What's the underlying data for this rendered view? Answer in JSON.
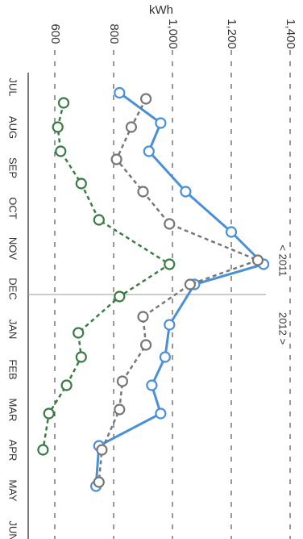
{
  "chart_data": {
    "type": "line",
    "ylabel": "kWh",
    "ylim": [
      540,
      1400
    ],
    "ytick_labels": [
      "600",
      "800",
      "1,000",
      "1,200",
      "1,400"
    ],
    "yticks": [
      600,
      800,
      1000,
      1200,
      1400
    ],
    "categories": [
      "JUL",
      "AUG",
      "SEP",
      "OCT",
      "NOV",
      "DEC",
      "JAN",
      "FEB",
      "MAR",
      "APR",
      "MAY",
      "JUN"
    ],
    "year_marker": {
      "after_category": "DEC",
      "left": "< 2011",
      "right": "2012 >"
    },
    "grid": true,
    "series": [
      {
        "color": "#4a90d9",
        "style": "solid",
        "x": [
          0.75,
          1.5,
          2.2,
          3.2,
          4.2,
          5.0,
          5.5,
          6.5,
          7.3,
          8.0,
          8.7,
          9.5,
          10.5
        ],
        "values": [
          820,
          960,
          920,
          1045,
          1200,
          1310,
          1075,
          990,
          975,
          930,
          960,
          750,
          740
        ]
      },
      {
        "color": "#777777",
        "style": "dashed",
        "x": [
          0.9,
          1.6,
          2.4,
          3.2,
          4.0,
          4.9,
          5.5,
          6.3,
          7.0,
          7.9,
          8.6,
          9.6,
          10.4
        ],
        "values": [
          910,
          860,
          810,
          900,
          990,
          1290,
          1060,
          900,
          910,
          830,
          820,
          760,
          750
        ]
      },
      {
        "color": "#3a7d44",
        "style": "dashed",
        "x": [
          1.0,
          1.6,
          2.2,
          3.0,
          3.9,
          5.0,
          5.8,
          6.7,
          7.3,
          8.0,
          8.7,
          9.6
        ],
        "values": [
          630,
          610,
          620,
          690,
          750,
          990,
          820,
          680,
          690,
          640,
          580,
          560
        ]
      }
    ]
  }
}
